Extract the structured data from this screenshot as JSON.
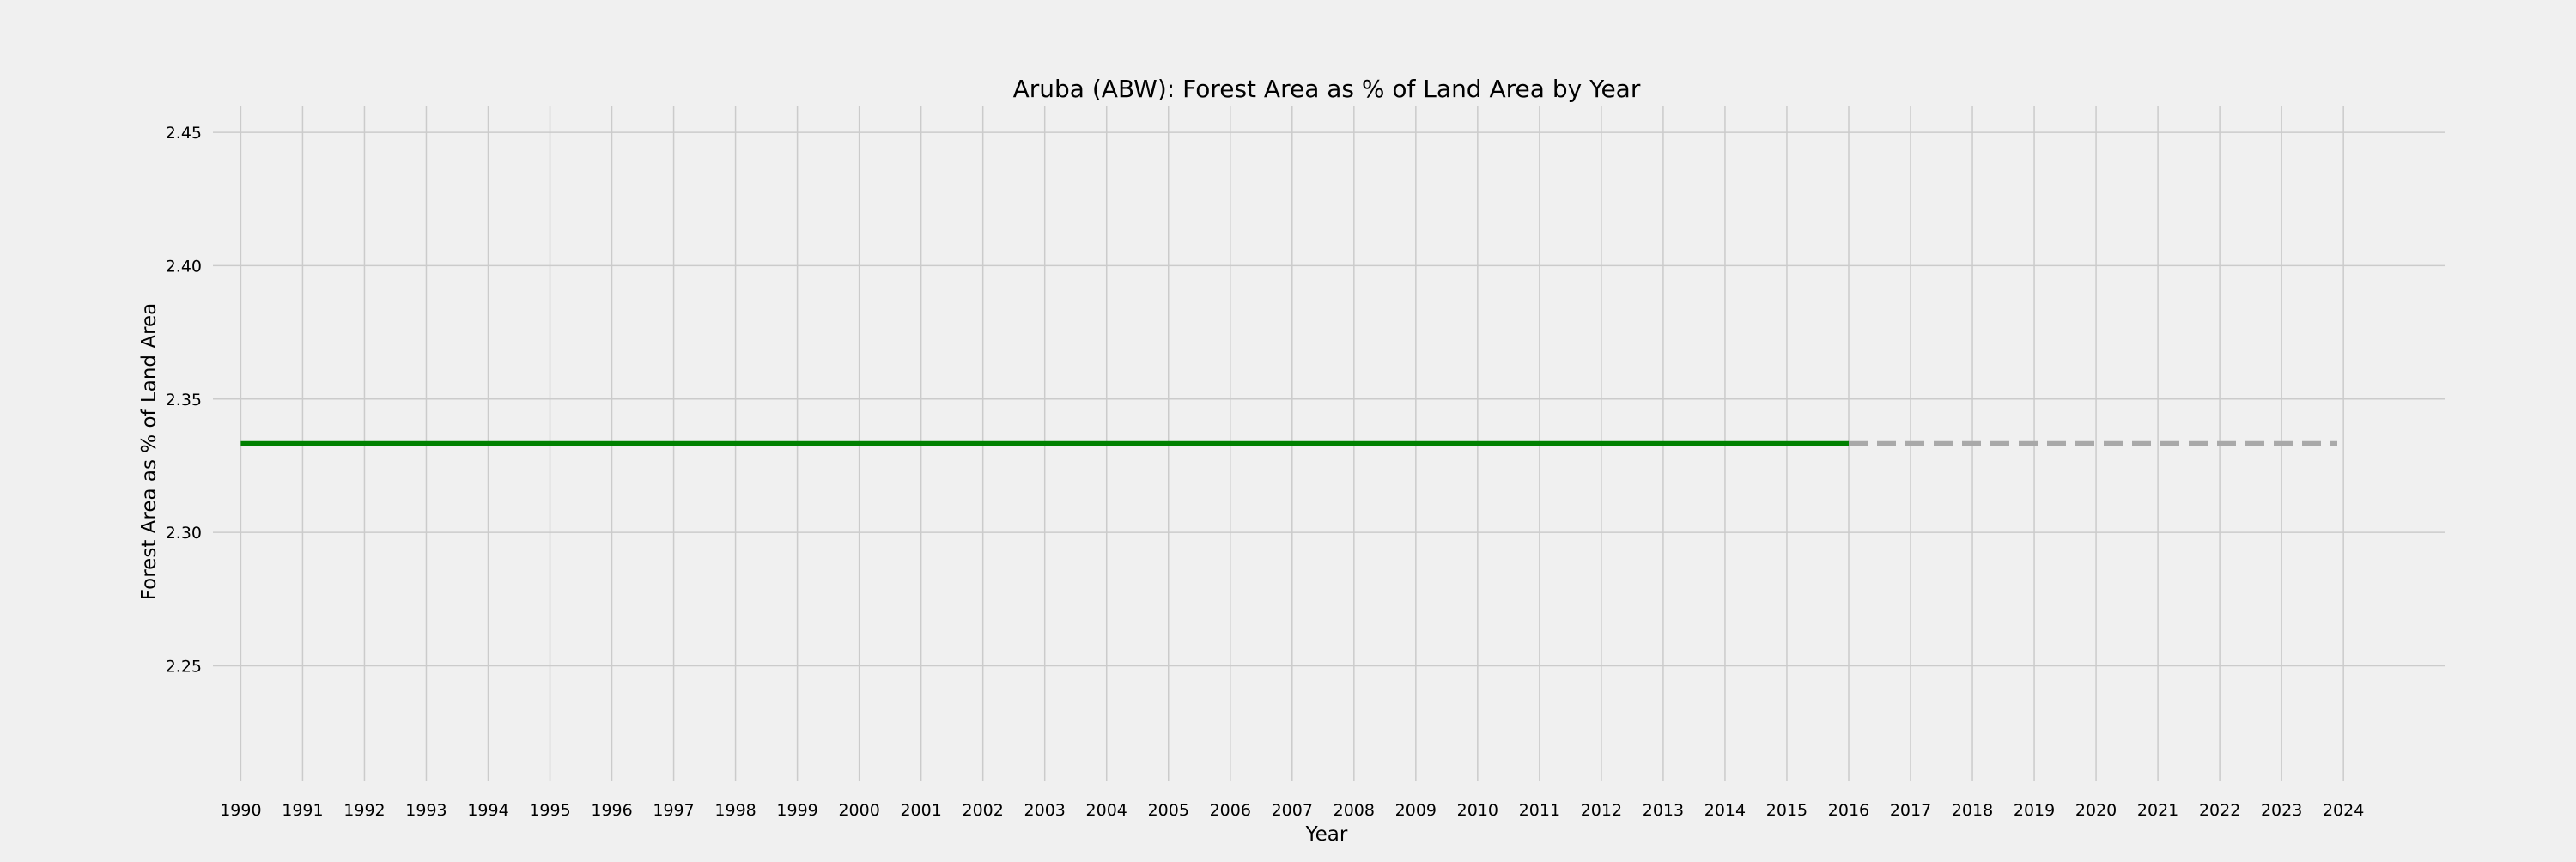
{
  "chart_data": {
    "type": "line",
    "title": "Aruba (ABW): Forest Area as % of Land Area by Year",
    "xlabel": "Year",
    "ylabel": "Forest Area as % of Land Area",
    "x_ticks": [
      "1990",
      "1991",
      "1992",
      "1993",
      "1994",
      "1995",
      "1996",
      "1997",
      "1998",
      "1999",
      "2000",
      "2001",
      "2002",
      "2003",
      "2004",
      "2005",
      "2006",
      "2007",
      "2008",
      "2009",
      "2010",
      "2011",
      "2012",
      "2013",
      "2014",
      "2015",
      "2016",
      "2017",
      "2018",
      "2019",
      "2020",
      "2021",
      "2022",
      "2023",
      "2024"
    ],
    "y_ticks": [
      "2.25",
      "2.30",
      "2.35",
      "2.40",
      "2.45"
    ],
    "xlim": [
      1989.55,
      2025.65
    ],
    "ylim": [
      2.2067,
      2.46
    ],
    "grid": true,
    "series": [
      {
        "style": "solid",
        "color": "#008000",
        "x": [
          1990,
          1991,
          1992,
          1993,
          1994,
          1995,
          1996,
          1997,
          1998,
          1999,
          2000,
          2001,
          2002,
          2003,
          2004,
          2005,
          2006,
          2007,
          2008,
          2009,
          2010,
          2011,
          2012,
          2013,
          2014,
          2015,
          2016
        ],
        "values": [
          2.3333,
          2.3333,
          2.3333,
          2.3333,
          2.3333,
          2.3333,
          2.3333,
          2.3333,
          2.3333,
          2.3333,
          2.3333,
          2.3333,
          2.3333,
          2.3333,
          2.3333,
          2.3333,
          2.3333,
          2.3333,
          2.3333,
          2.3333,
          2.3333,
          2.3333,
          2.3333,
          2.3333,
          2.3333,
          2.3333,
          2.3333
        ]
      },
      {
        "style": "dashed",
        "color": "#a9a9a9",
        "x": [
          2016,
          2023.9
        ],
        "values": [
          2.3333,
          2.3333
        ]
      }
    ]
  }
}
